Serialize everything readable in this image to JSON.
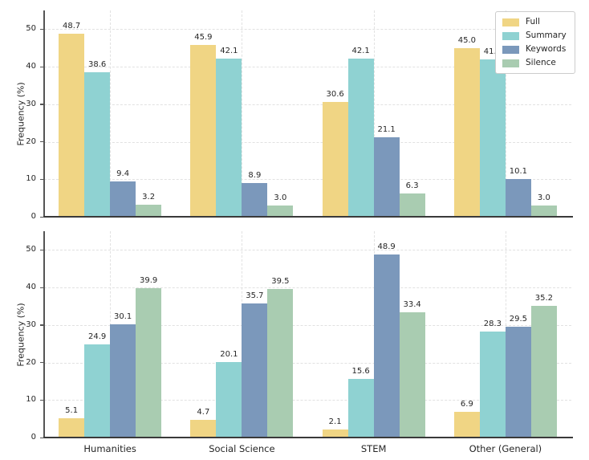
{
  "colors": {
    "full": "#f0d584",
    "summary": "#8fd2d2",
    "keywords": "#7b98bb",
    "silence": "#a9ccb1",
    "grid": "#e1e1e1",
    "spine_left": "#555555",
    "spine_bottom": "#3a3a3a",
    "text": "#262626"
  },
  "legend": {
    "position": "upper right",
    "items": [
      {
        "label": "Full",
        "color": "#f0d584"
      },
      {
        "label": "Summary",
        "color": "#8fd2d2"
      },
      {
        "label": "Keywords",
        "color": "#7b98bb"
      },
      {
        "label": "Silence",
        "color": "#a9ccb1"
      }
    ]
  },
  "axes": {
    "ylabel": "Frequency (%)",
    "yticks": [
      0,
      10,
      20,
      30,
      40,
      50
    ],
    "ylim": [
      0,
      55
    ],
    "categories": [
      "Humanities",
      "Social Science",
      "STEM",
      "Other (General)"
    ]
  },
  "chart_data": [
    {
      "type": "bar",
      "panel": "top",
      "title": "",
      "xlabel": "",
      "ylabel": "Frequency (%)",
      "categories": [
        "Humanities",
        "Social Science",
        "STEM",
        "Other (General)"
      ],
      "series": [
        {
          "name": "Full",
          "values": [
            48.7,
            45.9,
            30.6,
            45.0
          ]
        },
        {
          "name": "Summary",
          "values": [
            38.6,
            42.1,
            42.1,
            41.9
          ]
        },
        {
          "name": "Keywords",
          "values": [
            9.4,
            8.9,
            21.1,
            10.1
          ]
        },
        {
          "name": "Silence",
          "values": [
            3.2,
            3.0,
            6.3,
            3.0
          ]
        }
      ],
      "ylim": [
        0,
        55
      ],
      "yticks": [
        0,
        10,
        20,
        30,
        40,
        50
      ],
      "grid": true,
      "grid_style": "dashed",
      "bar_value_labels": true,
      "legend_position": "upper right",
      "x_tick_labels_visible": false
    },
    {
      "type": "bar",
      "panel": "bottom",
      "title": "",
      "xlabel": "",
      "ylabel": "Frequency (%)",
      "categories": [
        "Humanities",
        "Social Science",
        "STEM",
        "Other (General)"
      ],
      "series": [
        {
          "name": "Full",
          "values": [
            5.1,
            4.7,
            2.1,
            6.9
          ]
        },
        {
          "name": "Summary",
          "values": [
            24.9,
            20.1,
            15.6,
            28.3
          ]
        },
        {
          "name": "Keywords",
          "values": [
            30.1,
            35.7,
            48.9,
            29.5
          ]
        },
        {
          "name": "Silence",
          "values": [
            39.9,
            39.5,
            33.4,
            35.2
          ]
        }
      ],
      "ylim": [
        0,
        55
      ],
      "yticks": [
        0,
        10,
        20,
        30,
        40,
        50
      ],
      "grid": true,
      "grid_style": "dashed",
      "bar_value_labels": true,
      "legend_position": "none",
      "x_tick_labels_visible": true
    }
  ]
}
